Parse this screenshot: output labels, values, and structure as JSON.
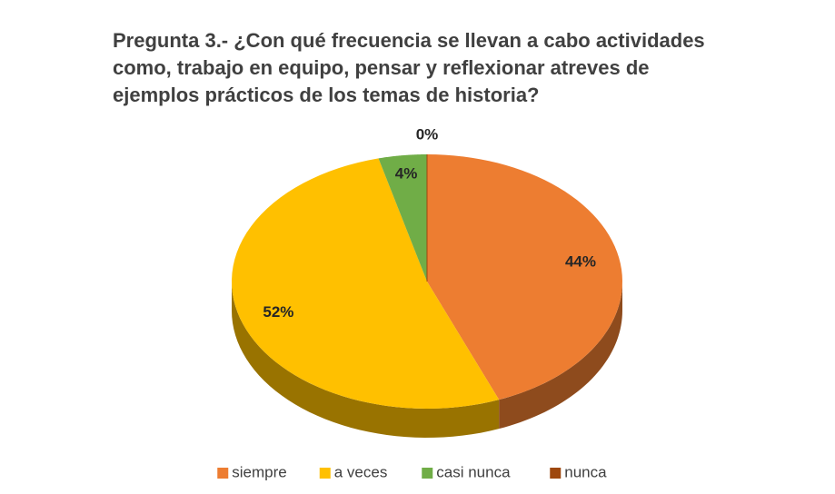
{
  "chart_data": {
    "type": "pie",
    "title": "Pregunta 3.- ¿Con qué frecuencia se llevan a cabo actividades como, trabajo en equipo, pensar y reflexionar atreves de ejemplos prácticos de los temas de historia?",
    "categories": [
      "siempre",
      "a veces",
      "casi nunca",
      "nunca"
    ],
    "values": [
      44,
      52,
      4,
      0
    ],
    "value_labels": [
      "44%",
      "52%",
      "4%",
      "0%"
    ],
    "colors": [
      "#ed7d31",
      "#ffc000",
      "#70ad47",
      "#9e480e"
    ],
    "legend": "bottom"
  }
}
